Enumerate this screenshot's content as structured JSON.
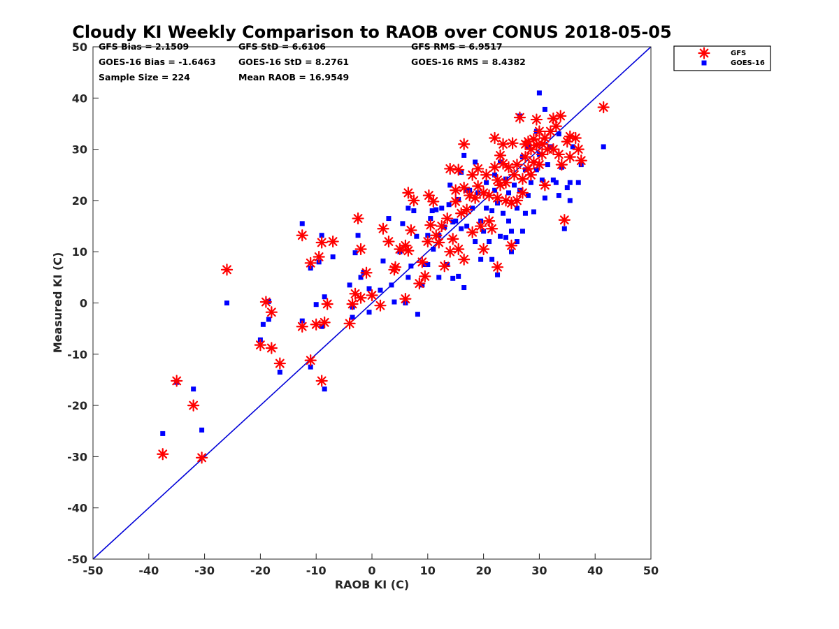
{
  "chart_data": {
    "type": "scatter",
    "title": "Cloudy KI Weekly Comparison to RAOB over CONUS 2018-05-05",
    "xlabel": "RAOB KI (C)",
    "ylabel": "Measured KI (C)",
    "xlim": [
      -50,
      50
    ],
    "ylim": [
      -50,
      50
    ],
    "xticks": [
      "-50",
      "-40",
      "-30",
      "-20",
      "-10",
      "0",
      "10",
      "20",
      "30",
      "40",
      "50"
    ],
    "yticks": [
      "50",
      "40",
      "30",
      "20",
      "10",
      "0",
      "-10",
      "-20",
      "-30",
      "-40",
      "-50"
    ],
    "grid": false,
    "legend_position": "top-right, outside plot",
    "reference_line": {
      "from": [
        -50,
        -50
      ],
      "to": [
        50,
        50
      ],
      "color": "#0000d8"
    },
    "stats": {
      "gfs_bias": "GFS Bias = 2.1509",
      "goes_bias": "GOES-16 Bias = -1.6463",
      "sample_size": "Sample Size = 224",
      "gfs_std": "GFS StD = 6.6106",
      "goes_std": "GOES-16 StD = 8.2761",
      "mean_raob": "Mean RAOB = 16.9549",
      "gfs_rms": "GFS RMS = 6.9517",
      "goes_rms": "GOES-16 RMS = 8.4382"
    },
    "series": [
      {
        "name": "GFS",
        "marker": "asterisk",
        "color": "#ff0000",
        "points": [
          [
            -37.5,
            -29.5
          ],
          [
            -35,
            -15.2
          ],
          [
            -32,
            -20
          ],
          [
            -30.5,
            -30.2
          ],
          [
            -26,
            6.5
          ],
          [
            -20,
            -8.2
          ],
          [
            -19,
            0.2
          ],
          [
            -18,
            -1.8
          ],
          [
            -18,
            -8.8
          ],
          [
            -16.5,
            -11.8
          ],
          [
            -12.5,
            13.2
          ],
          [
            -12.5,
            -4.6
          ],
          [
            -11,
            7.8
          ],
          [
            -11,
            -11.2
          ],
          [
            -10,
            -4.2
          ],
          [
            -9.5,
            9
          ],
          [
            -9,
            11.8
          ],
          [
            -9,
            -15.2
          ],
          [
            -8.5,
            -3.8
          ],
          [
            -8,
            -0.2
          ],
          [
            -7,
            12
          ],
          [
            -4,
            -4
          ],
          [
            -3.5,
            -0.2
          ],
          [
            -3,
            1.8
          ],
          [
            -2.5,
            16.5
          ],
          [
            -2,
            10.5
          ],
          [
            -2,
            1
          ],
          [
            -1,
            5.9
          ],
          [
            0,
            1.5
          ],
          [
            1.5,
            -0.5
          ],
          [
            2,
            14.5
          ],
          [
            3,
            12
          ],
          [
            4,
            6.5
          ],
          [
            4.2,
            7
          ],
          [
            5,
            10.5
          ],
          [
            6,
            11.2
          ],
          [
            6,
            0.8
          ],
          [
            6.5,
            10.2
          ],
          [
            6.5,
            21.5
          ],
          [
            7,
            14.2
          ],
          [
            7.5,
            20
          ],
          [
            8.5,
            3.8
          ],
          [
            9,
            8
          ],
          [
            9.5,
            5.2
          ],
          [
            10,
            12
          ],
          [
            10.2,
            21
          ],
          [
            10.5,
            15.2
          ],
          [
            11,
            19.8
          ],
          [
            11.5,
            13.2
          ],
          [
            12,
            11.8
          ],
          [
            12.5,
            15
          ],
          [
            13,
            7.2
          ],
          [
            13.5,
            16.5
          ],
          [
            14,
            26.2
          ],
          [
            14,
            10
          ],
          [
            14.5,
            12.5
          ],
          [
            15,
            22
          ],
          [
            15,
            19.8
          ],
          [
            15.5,
            10.5
          ],
          [
            15.5,
            26
          ],
          [
            16,
            17.5
          ],
          [
            16.5,
            31
          ],
          [
            16.5,
            22.5
          ],
          [
            16.5,
            8.5
          ],
          [
            17,
            18.2
          ],
          [
            17.5,
            21
          ],
          [
            18,
            25
          ],
          [
            18,
            13.8
          ],
          [
            18.5,
            20.5
          ],
          [
            19,
            26.2
          ],
          [
            19,
            22.8
          ],
          [
            19.5,
            15
          ],
          [
            20,
            21.5
          ],
          [
            20,
            10.5
          ],
          [
            20.5,
            25
          ],
          [
            21,
            21
          ],
          [
            21,
            16
          ],
          [
            21.5,
            14.5
          ],
          [
            22,
            32.2
          ],
          [
            22,
            26.5
          ],
          [
            22.5,
            20.5
          ],
          [
            22.5,
            24
          ],
          [
            22.5,
            7
          ],
          [
            23,
            23
          ],
          [
            23,
            28.8
          ],
          [
            23.5,
            27.2
          ],
          [
            23.5,
            31
          ],
          [
            24,
            23.5
          ],
          [
            24,
            20
          ],
          [
            24.5,
            26.5
          ],
          [
            25,
            11.2
          ],
          [
            25,
            19.5
          ],
          [
            25.2,
            31.2
          ],
          [
            25.5,
            25
          ],
          [
            26,
            27
          ],
          [
            26,
            20
          ],
          [
            26.5,
            36.2
          ],
          [
            27,
            24.2
          ],
          [
            27,
            21.5
          ],
          [
            27.5,
            31
          ],
          [
            27.5,
            28.5
          ],
          [
            28,
            31.5
          ],
          [
            28,
            26.2
          ],
          [
            28.5,
            30
          ],
          [
            28.5,
            25
          ],
          [
            29,
            32
          ],
          [
            29,
            27.5
          ],
          [
            29.5,
            35.8
          ],
          [
            29.5,
            30.8
          ],
          [
            30,
            33.5
          ],
          [
            30,
            27
          ],
          [
            30.5,
            31
          ],
          [
            30.5,
            29
          ],
          [
            31,
            23
          ],
          [
            31,
            32.2
          ],
          [
            31.5,
            30
          ],
          [
            32,
            33.5
          ],
          [
            32.5,
            36
          ],
          [
            32.5,
            30
          ],
          [
            33,
            34.5
          ],
          [
            33.5,
            29
          ],
          [
            33.8,
            36.5
          ],
          [
            34,
            27
          ],
          [
            34.5,
            16.2
          ],
          [
            35,
            31.5
          ],
          [
            35.5,
            28.5
          ],
          [
            35.5,
            32.5
          ],
          [
            36.5,
            32.2
          ],
          [
            37,
            30
          ],
          [
            37.5,
            27.8
          ],
          [
            41.5,
            38.2
          ]
        ]
      },
      {
        "name": "GOES-16",
        "marker": "square",
        "color": "#0000ff",
        "points": [
          [
            -37.5,
            -25.5
          ],
          [
            -35,
            -15.5
          ],
          [
            -32,
            -16.8
          ],
          [
            -30.5,
            -24.8
          ],
          [
            -26,
            0
          ],
          [
            -20,
            -7.2
          ],
          [
            -19.5,
            -4.2
          ],
          [
            -18.5,
            0.3
          ],
          [
            -18.5,
            -3.2
          ],
          [
            -16.5,
            -13.5
          ],
          [
            -12.5,
            15.5
          ],
          [
            -12.5,
            -3.5
          ],
          [
            -11,
            6.8
          ],
          [
            -11,
            -12.5
          ],
          [
            -10,
            -0.3
          ],
          [
            -9.5,
            8
          ],
          [
            -9,
            13.2
          ],
          [
            -9,
            -4.6
          ],
          [
            -8.5,
            -16.8
          ],
          [
            -8.5,
            1.2
          ],
          [
            -7,
            9
          ],
          [
            -4,
            3.5
          ],
          [
            -3.5,
            -2.8
          ],
          [
            -3.5,
            -0.8
          ],
          [
            -3,
            9.8
          ],
          [
            -2.5,
            13.2
          ],
          [
            -2,
            5
          ],
          [
            -1.5,
            6
          ],
          [
            -0.5,
            2.8
          ],
          [
            -0.5,
            -1.8
          ],
          [
            1.5,
            2.5
          ],
          [
            2,
            8.2
          ],
          [
            3,
            16.5
          ],
          [
            3.5,
            3.5
          ],
          [
            4,
            0.2
          ],
          [
            5,
            10
          ],
          [
            5.5,
            15.5
          ],
          [
            6,
            0
          ],
          [
            6.5,
            18.5
          ],
          [
            6.5,
            5
          ],
          [
            7,
            7.2
          ],
          [
            7.5,
            18
          ],
          [
            8,
            13
          ],
          [
            8.2,
            -2.2
          ],
          [
            9,
            3.5
          ],
          [
            9.5,
            7.5
          ],
          [
            10,
            13.2
          ],
          [
            10,
            7.5
          ],
          [
            10.5,
            16.5
          ],
          [
            10.8,
            18
          ],
          [
            11,
            10.5
          ],
          [
            11.5,
            18.2
          ],
          [
            12,
            13.2
          ],
          [
            12,
            5
          ],
          [
            12.5,
            18.5
          ],
          [
            13,
            14.8
          ],
          [
            13.5,
            7.5
          ],
          [
            13.8,
            19.2
          ],
          [
            14,
            23
          ],
          [
            14.5,
            4.8
          ],
          [
            14.5,
            15.8
          ],
          [
            15,
            16
          ],
          [
            15.5,
            20.2
          ],
          [
            15.5,
            5.2
          ],
          [
            16,
            14.5
          ],
          [
            16,
            25.5
          ],
          [
            16.5,
            28.8
          ],
          [
            16.5,
            3
          ],
          [
            17,
            22
          ],
          [
            17,
            15
          ],
          [
            17.5,
            22
          ],
          [
            18,
            18.5
          ],
          [
            18.5,
            27.5
          ],
          [
            18.5,
            12
          ],
          [
            19,
            21.5
          ],
          [
            19.5,
            8.5
          ],
          [
            19.5,
            16
          ],
          [
            20,
            14
          ],
          [
            20.5,
            18.5
          ],
          [
            20.5,
            23.5
          ],
          [
            21,
            12
          ],
          [
            21.5,
            18
          ],
          [
            21.5,
            8.5
          ],
          [
            22,
            25
          ],
          [
            22,
            22
          ],
          [
            22.5,
            5.5
          ],
          [
            22.5,
            19.5
          ],
          [
            23,
            13
          ],
          [
            23,
            27.5
          ],
          [
            23.5,
            17.5
          ],
          [
            24,
            12.8
          ],
          [
            24,
            24.2
          ],
          [
            24.5,
            16
          ],
          [
            24.5,
            21.5
          ],
          [
            25,
            10
          ],
          [
            25,
            14
          ],
          [
            25.5,
            23
          ],
          [
            26,
            12
          ],
          [
            26,
            18.5
          ],
          [
            26.5,
            22
          ],
          [
            26.5,
            36.5
          ],
          [
            27,
            28.5
          ],
          [
            27,
            14
          ],
          [
            27.5,
            17.5
          ],
          [
            27.5,
            26
          ],
          [
            28,
            21
          ],
          [
            28,
            30.5
          ],
          [
            28.5,
            23.5
          ],
          [
            29,
            17.8
          ],
          [
            29.5,
            33.5
          ],
          [
            29.5,
            26
          ],
          [
            30,
            41
          ],
          [
            30,
            29
          ],
          [
            30.5,
            24
          ],
          [
            31,
            37.8
          ],
          [
            31,
            20.5
          ],
          [
            31.5,
            27
          ],
          [
            32,
            30.5
          ],
          [
            32.5,
            24
          ],
          [
            33,
            23.5
          ],
          [
            33.5,
            33
          ],
          [
            33.5,
            21
          ],
          [
            34,
            26.5
          ],
          [
            34.5,
            14.5
          ],
          [
            35,
            22.5
          ],
          [
            35.5,
            23.5
          ],
          [
            35.5,
            20
          ],
          [
            36,
            30.5
          ],
          [
            37,
            23.5
          ],
          [
            37.5,
            27
          ],
          [
            41.5,
            30.5
          ]
        ]
      }
    ]
  }
}
